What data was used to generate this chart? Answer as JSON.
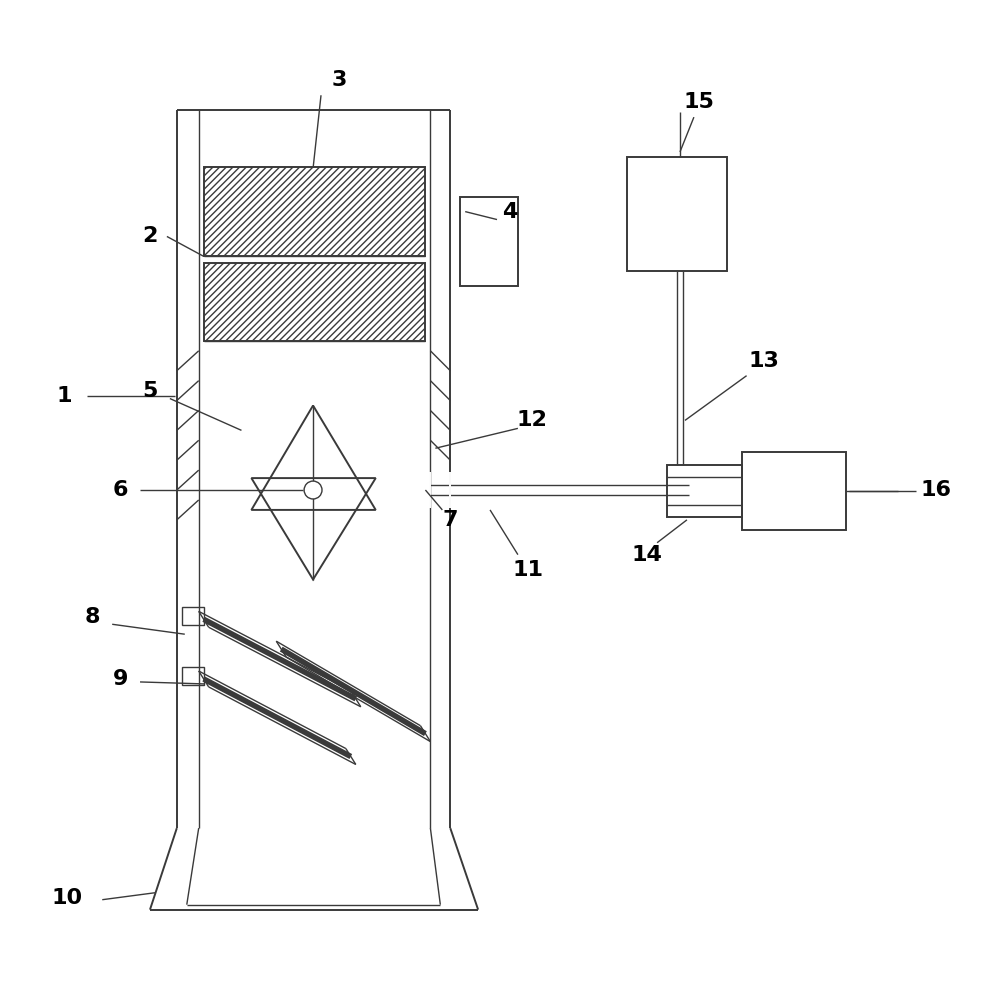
{
  "bg_color": "#ffffff",
  "line_color": "#3a3a3a",
  "fig_width": 10.0,
  "fig_height": 9.89,
  "label_color": "#000000",
  "label_fontsize": 16,
  "lw_main": 1.4,
  "lw_thin": 1.0,
  "lw_thick": 1.8
}
